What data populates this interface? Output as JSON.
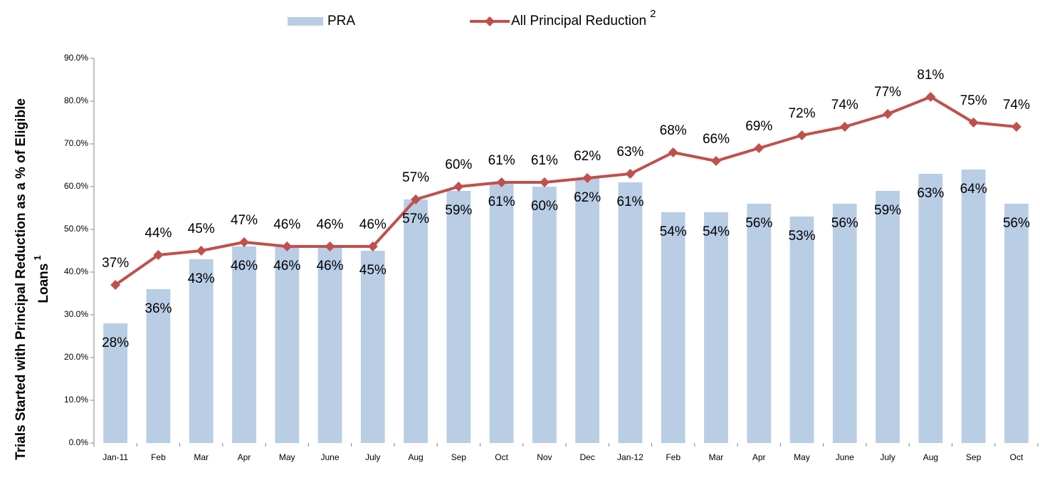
{
  "chart_data": {
    "type": "bar_line",
    "ylabel": [
      "Trials Started with Principal Reduction as a % of Eligible",
      "Loans"
    ],
    "ylabel_note": "1",
    "legend_note": "2",
    "categories": [
      "Jan-11",
      "Feb",
      "Mar",
      "Apr",
      "May",
      "June",
      "July",
      "Aug",
      "Sep",
      "Oct",
      "Nov",
      "Dec",
      "Jan-12",
      "Feb",
      "Mar",
      "Apr",
      "May",
      "June",
      "July",
      "Aug",
      "Sep",
      "Oct"
    ],
    "series": [
      {
        "name": "PRA",
        "type": "bar",
        "color": "#b9cde5",
        "values": [
          28,
          36,
          43,
          46,
          46,
          46,
          45,
          57,
          59,
          61,
          60,
          62,
          61,
          54,
          54,
          56,
          53,
          56,
          59,
          63,
          64,
          56
        ],
        "value_labels": [
          "28%",
          "36%",
          "43%",
          "46%",
          "46%",
          "46%",
          "45%",
          "57%",
          "59%",
          "61%",
          "60%",
          "62%",
          "61%",
          "54%",
          "54%",
          "56%",
          "53%",
          "56%",
          "59%",
          "63%",
          "64%",
          "56%"
        ]
      },
      {
        "name": "All Principal Reduction",
        "type": "line",
        "color": "#c0504d",
        "values": [
          37,
          44,
          45,
          47,
          46,
          46,
          46,
          57,
          60,
          61,
          61,
          62,
          63,
          68,
          66,
          69,
          72,
          74,
          77,
          81,
          75,
          74
        ],
        "value_labels": [
          "37%",
          "44%",
          "45%",
          "47%",
          "46%",
          "46%",
          "46%",
          "57%",
          "60%",
          "61%",
          "61%",
          "62%",
          "63%",
          "68%",
          "66%",
          "69%",
          "72%",
          "74%",
          "77%",
          "81%",
          "75%",
          "74%"
        ]
      }
    ],
    "ylim": [
      0,
      90
    ],
    "yticks": [
      {
        "value": 0,
        "label": "0.0%"
      },
      {
        "value": 10,
        "label": "10.0%"
      },
      {
        "value": 20,
        "label": "20.0%"
      },
      {
        "value": 30,
        "label": "30.0%"
      },
      {
        "value": 40,
        "label": "40.0%"
      },
      {
        "value": 50,
        "label": "50.0%"
      },
      {
        "value": 60,
        "label": "60.0%"
      },
      {
        "value": 70,
        "label": "70.0%"
      },
      {
        "value": 80,
        "label": "80.0%"
      },
      {
        "value": 90,
        "label": "90.0%"
      }
    ],
    "grid": false
  }
}
